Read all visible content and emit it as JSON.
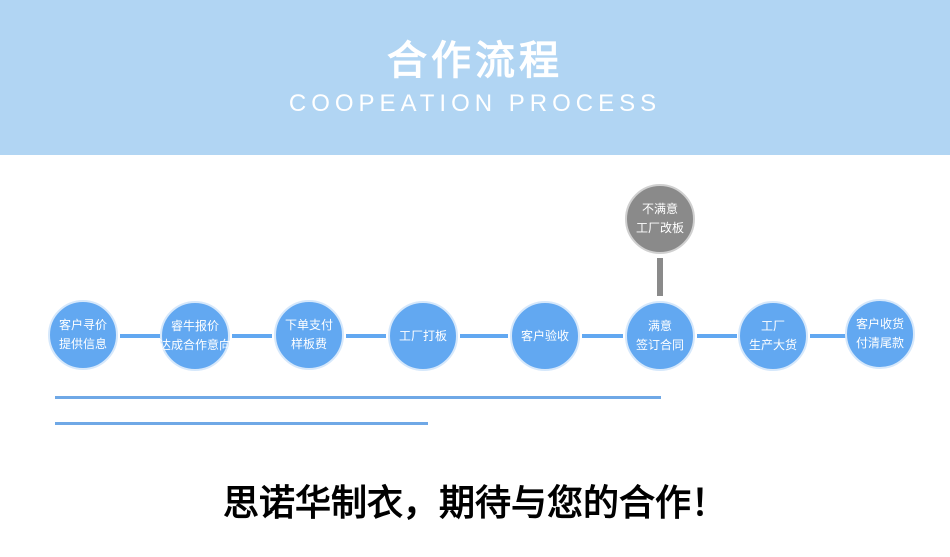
{
  "header": {
    "title": "合作流程",
    "subtitle": "COOPEATION PROCESS",
    "background": "#b1d5f3"
  },
  "steps": [
    {
      "line1": "客户寻价",
      "line2": "提供信息"
    },
    {
      "line1": "睿牛报价",
      "line2": "达成合作意向"
    },
    {
      "line1": "下单支付",
      "line2": "样板费"
    },
    {
      "line1": "工厂打板",
      "line2": ""
    },
    {
      "line1": "客户验收",
      "line2": ""
    },
    {
      "line1": "满意",
      "line2": "签订合同"
    },
    {
      "line1": "工厂",
      "line2": "生产大货"
    },
    {
      "line1": "客户收货",
      "line2": "付清尾款"
    }
  ],
  "branch": {
    "line1": "不满意",
    "line2": "工厂改板"
  },
  "slogan": "思诺华制衣，期待与您的合作！",
  "colors": {
    "step": "#62a8f1",
    "branch": "#8a8a8a"
  }
}
